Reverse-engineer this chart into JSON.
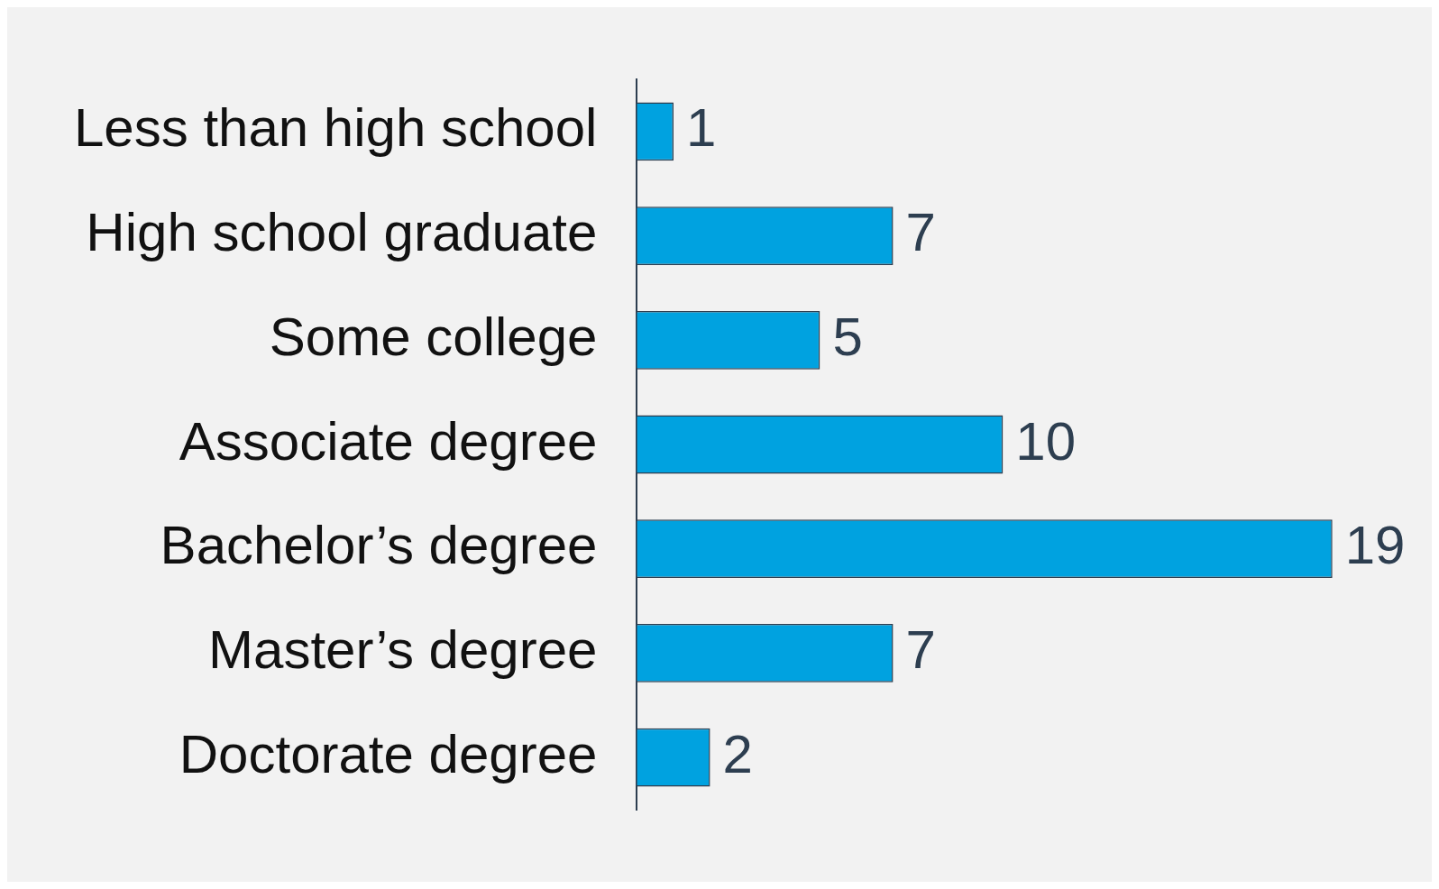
{
  "chart_data": {
    "type": "bar",
    "orientation": "horizontal",
    "categories": [
      "Less than high school",
      "High school graduate",
      "Some college",
      "Associate degree",
      "Bachelor’s degree",
      "Master’s degree",
      "Doctorate degree"
    ],
    "values": [
      1,
      7,
      5,
      10,
      19,
      7,
      2
    ],
    "color": "#00a2e0",
    "data_labels": true
  }
}
